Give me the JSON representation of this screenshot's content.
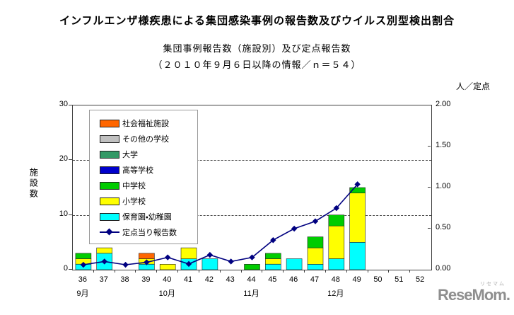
{
  "header": {
    "title": "インフルエンザ様疾患による集団感染事例の報告数及びウイルス別型検出割合",
    "subtitle1": "集団事例報告数（施設別）及び定点報告数",
    "subtitle2": "（２０１０年９月６日以降の情報／ｎ＝５４）"
  },
  "chart_data": {
    "type": "bar",
    "subtype": "stacked-bars-with-line-overlay",
    "categories": [
      "36",
      "37",
      "38",
      "39",
      "40",
      "41",
      "42",
      "43",
      "44",
      "45",
      "46",
      "47",
      "48",
      "49",
      "50",
      "51",
      "52"
    ],
    "series": [
      {
        "name": "保育園・幼稚園",
        "color": "#00FFFF",
        "values": [
          1,
          3,
          0,
          1,
          0,
          2,
          2,
          0,
          0,
          1,
          2,
          1,
          2,
          5,
          0,
          0,
          0
        ]
      },
      {
        "name": "小学校",
        "color": "#FFFF00",
        "values": [
          1,
          1,
          0,
          1,
          1,
          2,
          0,
          0,
          0,
          1,
          0,
          3,
          6,
          9,
          0,
          0,
          0
        ]
      },
      {
        "name": "中学校",
        "color": "#00CC00",
        "values": [
          1,
          0,
          0,
          0,
          0,
          0,
          0,
          0,
          1,
          1,
          0,
          2,
          2,
          1,
          0,
          0,
          0
        ]
      },
      {
        "name": "高等学校",
        "color": "#0000CC",
        "values": [
          0,
          0,
          0,
          0,
          0,
          0,
          0,
          0,
          0,
          0,
          0,
          0,
          0,
          0,
          0,
          0,
          0
        ]
      },
      {
        "name": "大学",
        "color": "#339966",
        "values": [
          0,
          0,
          0,
          0,
          0,
          0,
          0,
          0,
          0,
          0,
          0,
          0,
          0,
          0,
          0,
          0,
          0
        ]
      },
      {
        "name": "その他の学校",
        "color": "#C0C0C0",
        "values": [
          0,
          0,
          0,
          0,
          0,
          0,
          0,
          0,
          0,
          0,
          0,
          0,
          0,
          0,
          0,
          0,
          0
        ]
      },
      {
        "name": "社会福祉施設",
        "color": "#FF6600",
        "values": [
          0,
          0,
          0,
          1,
          0,
          0,
          0,
          0,
          0,
          0,
          0,
          0,
          0,
          0,
          0,
          0,
          0
        ]
      }
    ],
    "line_series": {
      "name": "定点当り報告数",
      "color": "#000080",
      "values": [
        0.06,
        0.1,
        0.06,
        0.09,
        0.15,
        0.07,
        0.18,
        0.1,
        0.15,
        0.36,
        0.5,
        0.59,
        0.75,
        1.04,
        null,
        null,
        null
      ]
    },
    "left_axis": {
      "title": "施設数",
      "min": 0,
      "max": 30,
      "ticks": [
        "0",
        "10",
        "20",
        "30"
      ]
    },
    "right_axis": {
      "title": "人／定点",
      "min": 0,
      "max": 2,
      "ticks": [
        "0.00",
        "0.50",
        "1.00",
        "1.50",
        "2.00"
      ]
    },
    "months": [
      {
        "label": "9月",
        "week_index": 0
      },
      {
        "label": "10月",
        "week_index": 4
      },
      {
        "label": "11月",
        "week_index": 8
      },
      {
        "label": "12月",
        "week_index": 12
      }
    ],
    "gridlines_at_left_values": [
      10,
      20
    ],
    "legend_position": "upper-left-inside",
    "total_n": 54
  },
  "legend": {
    "items": [
      {
        "label": "社会福祉施設",
        "color": "#FF6600",
        "type": "box"
      },
      {
        "label": "その他の学校",
        "color": "#C0C0C0",
        "type": "box"
      },
      {
        "label": "大学",
        "color": "#339966",
        "type": "box"
      },
      {
        "label": "高等学校",
        "color": "#0000CC",
        "type": "box"
      },
      {
        "label": "中学校",
        "color": "#00CC00",
        "type": "box"
      },
      {
        "label": "小学校",
        "color": "#FFFF00",
        "type": "box"
      },
      {
        "label": "保育園・幼稚園",
        "color": "#00FFFF",
        "type": "box"
      },
      {
        "label": "定点当り報告数",
        "color": "#000080",
        "type": "line"
      }
    ]
  },
  "watermark": {
    "text": "ReseMom.",
    "ruby": "リセマム"
  }
}
